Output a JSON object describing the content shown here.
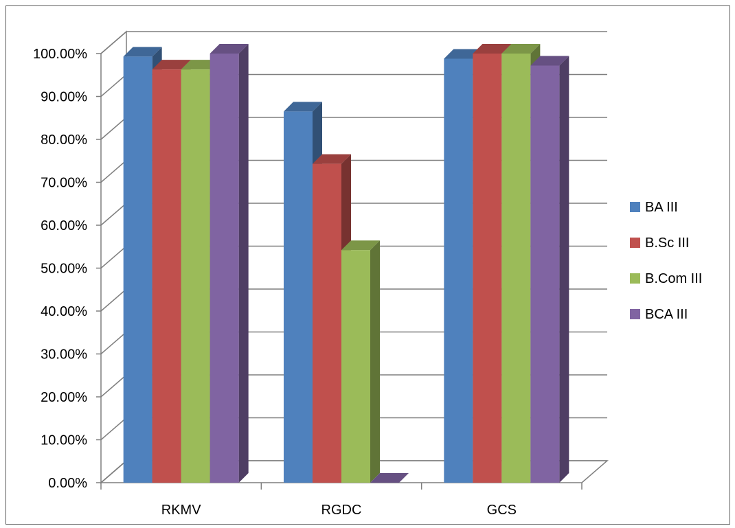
{
  "chart_data": {
    "type": "bar",
    "title": "",
    "xlabel": "",
    "ylabel": "",
    "categories": [
      "RKMV",
      "RGDC",
      "GCS"
    ],
    "ylim": [
      0,
      100
    ],
    "y_tick_values": [
      0,
      10,
      20,
      30,
      40,
      50,
      60,
      70,
      80,
      90,
      100
    ],
    "y_tick_labels": [
      "0.00%",
      "10.00%",
      "20.00%",
      "30.00%",
      "40.00%",
      "50.00%",
      "60.00%",
      "70.00%",
      "80.00%",
      "90.00%",
      "100.00%"
    ],
    "grid": true,
    "three_d": true,
    "legend_position": "right",
    "series": [
      {
        "name": "BA III",
        "color": "#4F81BD",
        "values": [
          99.3,
          86.5,
          98.8
        ]
      },
      {
        "name": "B.Sc III",
        "color": "#C0504D",
        "values": [
          96.3,
          74.3,
          100
        ]
      },
      {
        "name": "B.Com III",
        "color": "#9BBB59",
        "values": [
          96.3,
          54.2,
          100
        ]
      },
      {
        "name": "BCA III",
        "color": "#8064A2",
        "values": [
          100,
          0,
          97.2
        ]
      }
    ]
  }
}
